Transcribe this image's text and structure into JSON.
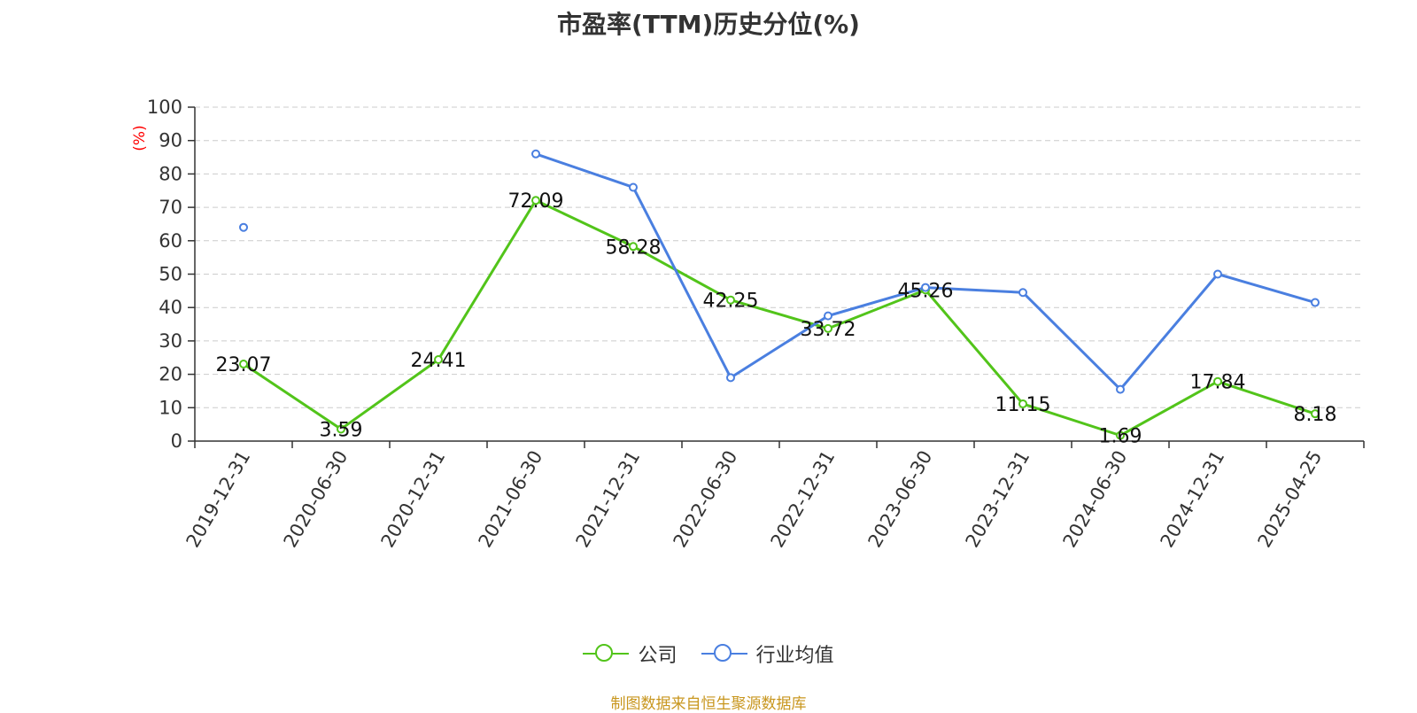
{
  "chart_data": {
    "type": "line",
    "title": "市盈率(TTM)历史分位(%)",
    "ylabel": "(%)",
    "xlabel": "",
    "ylim": [
      0,
      100
    ],
    "yticks": [
      "0",
      "10",
      "20",
      "30",
      "40",
      "50",
      "60",
      "70",
      "80",
      "90",
      "100"
    ],
    "categories": [
      "2019-12-31",
      "2020-06-30",
      "2020-12-31",
      "2021-06-30",
      "2021-12-31",
      "2022-06-30",
      "2022-12-31",
      "2023-06-30",
      "2023-12-31",
      "2024-06-30",
      "2024-12-31",
      "2025-04-25"
    ],
    "series": [
      {
        "name": "公司",
        "color": "#52c41a",
        "values": [
          23.07,
          3.59,
          24.41,
          72.09,
          58.28,
          42.25,
          33.72,
          45.26,
          11.15,
          1.69,
          17.84,
          8.18
        ],
        "labels": [
          "23.07",
          "3.59",
          "24.41",
          "72.09",
          "58.28",
          "42.25",
          "33.72",
          "45.26",
          "11.15",
          "1.69",
          "17.84",
          "8.18"
        ]
      },
      {
        "name": "行业均值",
        "color": "#4a7fe0",
        "values": [
          64,
          null,
          null,
          86,
          76,
          19,
          37.5,
          46,
          44.5,
          15.5,
          50,
          41.5
        ]
      }
    ],
    "grid": true,
    "grid_style": "dashed",
    "legend_position": "bottom-center"
  },
  "source": "制图数据来自恒生聚源数据库",
  "colors": {
    "axis_label": "#333333",
    "ylabel": "#ff0000",
    "grid": "#cccccc",
    "source": "#c8961e"
  }
}
